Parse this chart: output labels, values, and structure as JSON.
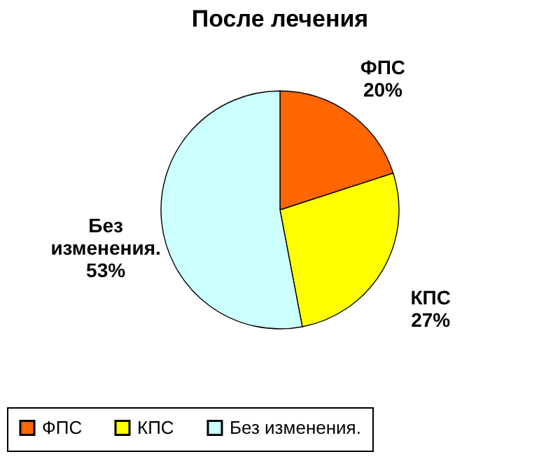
{
  "chart_data": {
    "type": "pie",
    "title": "После лечения",
    "categories": [
      "ФПС",
      "КПС",
      "Без изменения."
    ],
    "values": [
      20,
      27,
      53
    ],
    "value_labels": [
      "20%",
      "27%",
      "53%"
    ],
    "colors": [
      "#ff6600",
      "#ffff00",
      "#ccffff"
    ],
    "legend": "bottom"
  }
}
